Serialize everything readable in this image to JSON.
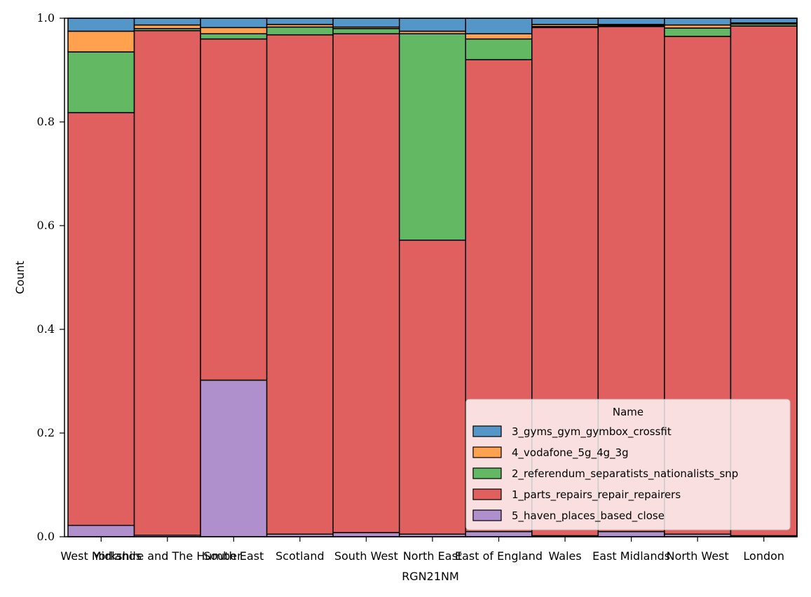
{
  "chart_data": {
    "type": "bar",
    "stacked": "normalized",
    "title": "",
    "xlabel": "RGN21NM",
    "ylabel": "Count",
    "ylim": [
      0,
      1
    ],
    "yticks": [
      "0.0",
      "0.2",
      "0.4",
      "0.6",
      "0.8",
      "1.0"
    ],
    "grid": false,
    "legend_title": "Name",
    "legend_position": "lower-right",
    "categories": [
      "West Midlands",
      "Yorkshire and The Humber",
      "South East",
      "Scotland",
      "South West",
      "North East",
      "East of England",
      "Wales",
      "East Midlands",
      "North West",
      "London"
    ],
    "series": [
      {
        "name": "5_haven_places_based_close",
        "color": "#b08fcd",
        "values": [
          0.022,
          0.003,
          0.302,
          0.005,
          0.008,
          0.005,
          0.01,
          0.002,
          0.01,
          0.005,
          0.002
        ]
      },
      {
        "name": "1_parts_repairs_repair_repairers",
        "color": "#e05f5f",
        "values": [
          0.796,
          0.973,
          0.658,
          0.963,
          0.962,
          0.567,
          0.91,
          0.98,
          0.974,
          0.96,
          0.983
        ]
      },
      {
        "name": "2_referendum_separatists_nationalists_snp",
        "color": "#62b863",
        "values": [
          0.117,
          0.004,
          0.01,
          0.015,
          0.01,
          0.398,
          0.04,
          0.002,
          0.002,
          0.016,
          0.004
        ]
      },
      {
        "name": "4_vodafone_5g_4g_3g",
        "color": "#ffa14f",
        "values": [
          0.04,
          0.007,
          0.012,
          0.005,
          0.003,
          0.005,
          0.01,
          0.004,
          0.002,
          0.006,
          0.002
        ]
      },
      {
        "name": "3_gyms_gym_gymbox_crossfit",
        "color": "#5596c8",
        "values": [
          0.025,
          0.013,
          0.018,
          0.012,
          0.017,
          0.025,
          0.03,
          0.012,
          0.012,
          0.013,
          0.009
        ]
      }
    ],
    "legend_order": [
      "3_gyms_gym_gymbox_crossfit",
      "4_vodafone_5g_4g_3g",
      "2_referendum_separatists_nationalists_snp",
      "1_parts_repairs_repair_repairers",
      "5_haven_places_based_close"
    ]
  }
}
